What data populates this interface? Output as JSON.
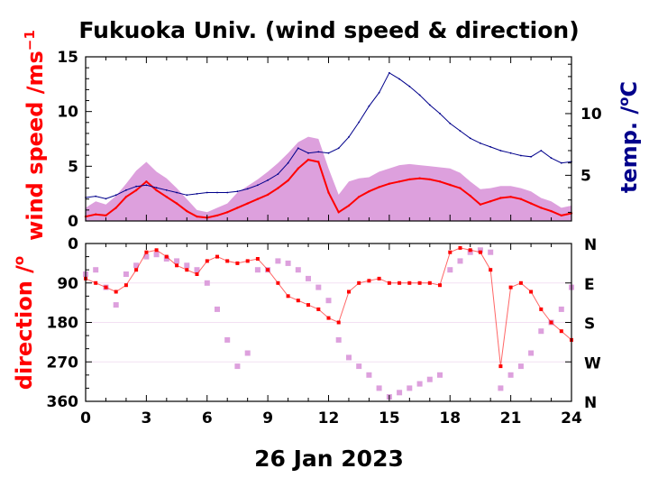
{
  "chart_data": {
    "title": "Fukuoka Univ. (wind speed & direction)",
    "date_label": "26 Jan 2023",
    "colors": {
      "gust": "#dda0dd",
      "wind": "#ff0000",
      "temp": "#00008b",
      "axis": "#000000"
    },
    "x_axis": {
      "range": [
        0,
        24
      ],
      "ticks": [
        0,
        3,
        6,
        9,
        12,
        15,
        18,
        21,
        24
      ],
      "unit": "hour"
    },
    "top_panel": {
      "type": "line",
      "ylabel_left": "wind speed /ms",
      "ylabel_left_sup": "−1",
      "ylabel_right": "temp. /",
      "ylabel_right_sup": "o",
      "ylabel_right_tail": "C",
      "ylim_left": [
        0,
        15
      ],
      "ticks_left": [
        0,
        5,
        10,
        15
      ],
      "ylim_right": [
        1.3,
        14.6
      ],
      "ticks_right": [
        5,
        10
      ],
      "series": [
        {
          "key": "gust",
          "type": "area",
          "x": [
            0,
            0.5,
            1,
            1.5,
            2,
            2.5,
            3,
            3.5,
            4,
            4.5,
            5,
            5.5,
            6,
            6.5,
            7,
            7.5,
            8,
            8.5,
            9,
            9.5,
            10,
            10.5,
            11,
            11.5,
            12,
            12.5,
            13,
            13.5,
            14,
            14.5,
            15,
            15.5,
            16,
            16.5,
            17,
            17.5,
            18,
            18.5,
            19,
            19.5,
            20,
            20.5,
            21,
            21.5,
            22,
            22.5,
            23,
            23.5,
            24
          ],
          "values": [
            1.2,
            1.8,
            1.5,
            2.3,
            3.4,
            4.6,
            5.4,
            4.5,
            3.9,
            3.0,
            2.0,
            1.0,
            0.8,
            1.2,
            1.6,
            2.6,
            3.2,
            3.8,
            4.5,
            5.3,
            6.2,
            7.2,
            7.7,
            7.5,
            4.8,
            2.4,
            3.6,
            3.9,
            4.0,
            4.5,
            4.8,
            5.1,
            5.2,
            5.1,
            5.0,
            4.9,
            4.8,
            4.4,
            3.6,
            2.9,
            3.0,
            3.2,
            3.2,
            3.0,
            2.7,
            2.1,
            1.8,
            1.2,
            1.4
          ]
        },
        {
          "key": "wind",
          "type": "line",
          "x": [
            0,
            0.5,
            1,
            1.5,
            2,
            2.5,
            3,
            3.5,
            4,
            4.5,
            5,
            5.5,
            6,
            6.5,
            7,
            7.5,
            8,
            8.5,
            9,
            9.5,
            10,
            10.5,
            11,
            11.5,
            12,
            12.5,
            13,
            13.5,
            14,
            14.5,
            15,
            15.5,
            16,
            16.5,
            17,
            17.5,
            18,
            18.5,
            19,
            19.5,
            20,
            20.5,
            21,
            21.5,
            22,
            22.5,
            23,
            23.5,
            24
          ],
          "values": [
            0.4,
            0.6,
            0.5,
            1.2,
            2.2,
            2.8,
            3.6,
            2.8,
            2.2,
            1.6,
            0.9,
            0.4,
            0.3,
            0.5,
            0.8,
            1.2,
            1.6,
            2.0,
            2.4,
            3.0,
            3.7,
            4.8,
            5.6,
            5.4,
            2.6,
            0.8,
            1.4,
            2.2,
            2.7,
            3.1,
            3.4,
            3.6,
            3.8,
            3.9,
            3.8,
            3.6,
            3.3,
            3.0,
            2.3,
            1.5,
            1.8,
            2.1,
            2.2,
            2.0,
            1.6,
            1.2,
            0.9,
            0.5,
            0.7
          ]
        },
        {
          "key": "temp",
          "type": "line",
          "axis": "right",
          "x": [
            0,
            0.5,
            1,
            1.5,
            2,
            2.5,
            3,
            3.5,
            4,
            4.5,
            5,
            5.5,
            6,
            6.5,
            7,
            7.5,
            8,
            8.5,
            9,
            9.5,
            10,
            10.5,
            11,
            11.5,
            12,
            12.5,
            13,
            13.5,
            14,
            14.5,
            15,
            15.5,
            16,
            16.5,
            17,
            17.5,
            18,
            18.5,
            19,
            19.5,
            20,
            20.5,
            21,
            21.5,
            22,
            22.5,
            23,
            23.5,
            24
          ],
          "values": [
            3.2,
            3.3,
            3.1,
            3.4,
            3.8,
            4.1,
            4.2,
            4.0,
            3.8,
            3.6,
            3.4,
            3.5,
            3.6,
            3.6,
            3.6,
            3.7,
            3.9,
            4.2,
            4.6,
            5.1,
            6.0,
            7.2,
            6.8,
            6.9,
            6.8,
            7.2,
            8.1,
            9.3,
            10.6,
            11.7,
            13.3,
            12.8,
            12.2,
            11.5,
            10.7,
            10.0,
            9.2,
            8.6,
            8.0,
            7.6,
            7.3,
            7.0,
            6.8,
            6.6,
            6.5,
            7.0,
            6.4,
            6.0,
            6.1
          ]
        }
      ]
    },
    "bottom_panel": {
      "type": "scatter",
      "ylabel_left": "direction /",
      "ylabel_left_sup": "o",
      "ylim": [
        0,
        360
      ],
      "inverted": true,
      "ticks_left": [
        0,
        90,
        180,
        270,
        360
      ],
      "ticks_right": [
        "N",
        "E",
        "S",
        "W",
        "N"
      ],
      "series": [
        {
          "key": "gust",
          "x": [
            0,
            0.5,
            1,
            1.5,
            2,
            2.5,
            3,
            3.5,
            4,
            4.5,
            5,
            5.5,
            6,
            6.5,
            7,
            7.5,
            8,
            8.5,
            9,
            9.5,
            10,
            10.5,
            11,
            11.5,
            12,
            12.5,
            13,
            13.5,
            14,
            14.5,
            15,
            15.5,
            16,
            16.5,
            17,
            17.5,
            18,
            18.5,
            19,
            19.5,
            20,
            20.5,
            21,
            21.5,
            22,
            22.5,
            23,
            23.5,
            24
          ],
          "values": [
            70,
            60,
            100,
            140,
            70,
            50,
            30,
            25,
            35,
            40,
            50,
            60,
            90,
            150,
            220,
            280,
            250,
            60,
            60,
            40,
            45,
            60,
            80,
            100,
            130,
            220,
            260,
            280,
            300,
            330,
            350,
            340,
            330,
            320,
            310,
            300,
            60,
            40,
            20,
            15,
            20,
            330,
            300,
            280,
            250,
            200,
            180,
            150,
            100
          ]
        },
        {
          "key": "wind",
          "x": [
            0,
            0.5,
            1,
            1.5,
            2,
            2.5,
            3,
            3.5,
            4,
            4.5,
            5,
            5.5,
            6,
            6.5,
            7,
            7.5,
            8,
            8.5,
            9,
            9.5,
            10,
            10.5,
            11,
            11.5,
            12,
            12.5,
            13,
            13.5,
            14,
            14.5,
            15,
            15.5,
            16,
            16.5,
            17,
            17.5,
            18,
            18.5,
            19,
            19.5,
            20,
            20.5,
            21,
            21.5,
            22,
            22.5,
            23,
            23.5,
            24
          ],
          "values": [
            80,
            90,
            100,
            110,
            95,
            60,
            20,
            15,
            30,
            50,
            60,
            70,
            40,
            30,
            40,
            45,
            40,
            35,
            60,
            90,
            120,
            130,
            140,
            150,
            170,
            180,
            110,
            90,
            85,
            80,
            90,
            90,
            90,
            90,
            90,
            95,
            20,
            10,
            15,
            20,
            60,
            280,
            100,
            90,
            110,
            150,
            180,
            200,
            220
          ]
        }
      ]
    }
  }
}
